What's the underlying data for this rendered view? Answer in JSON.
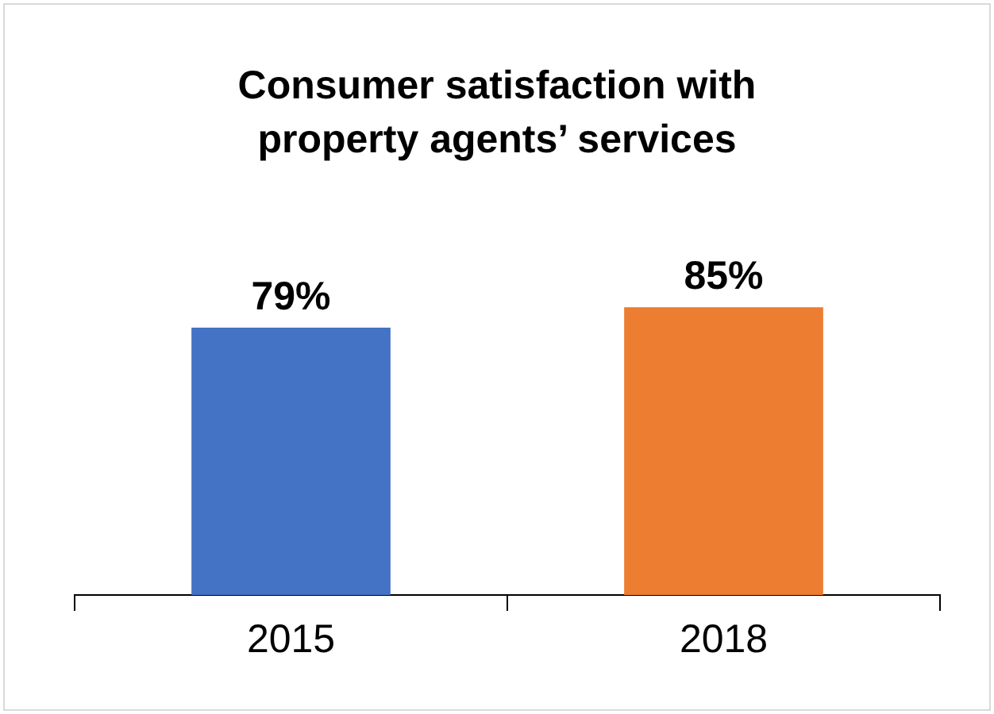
{
  "chart_data": {
    "type": "bar",
    "title": "Consumer satisfaction with property agents’ services",
    "categories": [
      "2015",
      "2018"
    ],
    "values": [
      79,
      85
    ],
    "colors": [
      "#4472c4",
      "#ed7d31"
    ],
    "value_labels": [
      "79%",
      "85%"
    ],
    "tick_labels": "x"
  }
}
